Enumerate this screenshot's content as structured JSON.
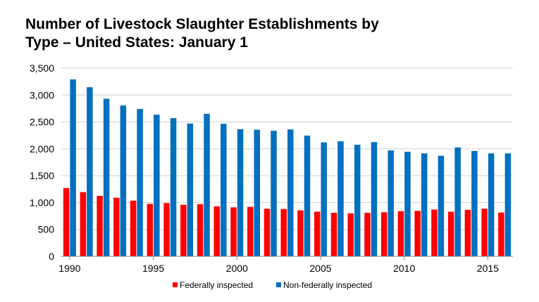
{
  "chart_data": {
    "type": "bar",
    "title": "Number of Livestock Slaughter Establishments by\nType – United  States: January 1",
    "xlabel": "",
    "ylabel": "",
    "ylim": [
      0,
      3500
    ],
    "yticks": [
      0,
      500,
      1000,
      1500,
      2000,
      2500,
      3000,
      3500
    ],
    "ytick_labels": [
      "0",
      "500",
      "1,000",
      "1,500",
      "2,000",
      "2,500",
      "3,000",
      "3,500"
    ],
    "xtick_labels": [
      "1990",
      "1995",
      "2000",
      "2005",
      "2010",
      "2015"
    ],
    "grid": true,
    "legend": "bottom",
    "categories": [
      1990,
      1991,
      1992,
      1993,
      1994,
      1995,
      1996,
      1997,
      1998,
      1999,
      2000,
      2001,
      2002,
      2003,
      2004,
      2005,
      2006,
      2007,
      2008,
      2009,
      2010,
      2011,
      2012,
      2013,
      2014,
      2015,
      2016
    ],
    "series": [
      {
        "name": "Federally inspected",
        "color": "#ff0000",
        "values": [
          1270,
          1195,
          1125,
          1090,
          1035,
          975,
          990,
          960,
          970,
          930,
          910,
          920,
          885,
          880,
          855,
          830,
          810,
          800,
          810,
          820,
          840,
          845,
          870,
          830,
          865,
          885,
          815
        ]
      },
      {
        "name": "Non-federally inspected",
        "color": "#0070c0",
        "values": [
          3290,
          3145,
          2930,
          2805,
          2740,
          2635,
          2570,
          2470,
          2650,
          2465,
          2365,
          2355,
          2335,
          2360,
          2245,
          2120,
          2140,
          2075,
          2125,
          1970,
          1945,
          1915,
          1870,
          2025,
          1960,
          1915,
          1915
        ]
      }
    ]
  }
}
